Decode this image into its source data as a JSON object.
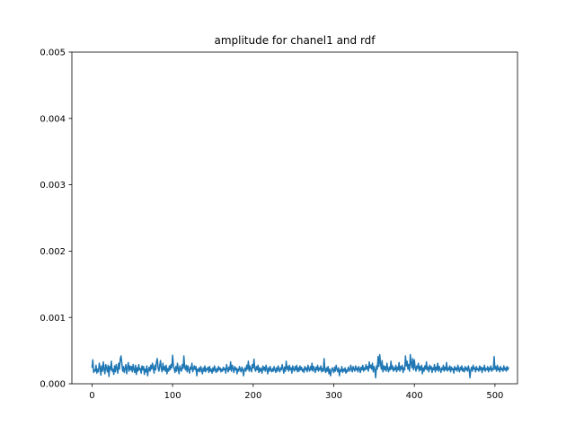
{
  "chart_data": {
    "type": "line",
    "title": "amplitude for chanel1 and rdf",
    "xlabel": "",
    "ylabel": "",
    "xlim": [
      -25,
      528
    ],
    "ylim": [
      0,
      0.005
    ],
    "x_ticks": [
      0,
      100,
      200,
      300,
      400,
      500
    ],
    "y_ticks": [
      0.0,
      0.001,
      0.002,
      0.003,
      0.004,
      0.005
    ],
    "x_tick_labels": [
      "0",
      "100",
      "200",
      "300",
      "400",
      "500"
    ],
    "y_tick_labels": [
      "0.000",
      "0.001",
      "0.002",
      "0.003",
      "0.004",
      "0.005"
    ],
    "grid": false,
    "legend": "none",
    "series": [
      {
        "color": "#1f77b4",
        "x_start": 0,
        "x_step": 1,
        "values": [
          0.00024,
          0.00036,
          0.00017,
          0.00021,
          0.00019,
          0.00028,
          0.00016,
          0.00022,
          0.00018,
          0.00031,
          0.00024,
          0.00013,
          0.00027,
          0.00019,
          0.00033,
          0.00022,
          0.00015,
          0.00029,
          0.00024,
          0.00018,
          0.00028,
          0.00011,
          0.00026,
          0.00021,
          0.00034,
          0.00019,
          0.00022,
          0.00014,
          0.00027,
          0.00018,
          0.00029,
          0.00023,
          0.00016,
          0.00031,
          0.00022,
          0.00037,
          0.00042,
          0.00031,
          0.00019,
          0.00026,
          0.00017,
          0.00023,
          0.00029,
          0.00015,
          0.00024,
          0.00032,
          0.00019,
          0.00027,
          0.00021,
          0.00026,
          0.00018,
          0.00029,
          0.00022,
          0.00017,
          0.00028,
          0.00014,
          0.00024,
          0.00019,
          0.00029,
          0.00021,
          0.00023,
          0.00016,
          0.00027,
          0.00021,
          0.00026,
          0.00014,
          0.00022,
          0.00018,
          0.00027,
          0.00012,
          0.00021,
          0.00025,
          0.00019,
          0.00028,
          0.00022,
          0.00031,
          0.00024,
          0.00016,
          0.00028,
          0.00021,
          0.00033,
          0.00038,
          0.00024,
          0.00019,
          0.00027,
          0.00035,
          0.00022,
          0.00018,
          0.00031,
          0.00021,
          0.00026,
          0.00019,
          0.00028,
          0.00015,
          0.00023,
          0.00019,
          0.00027,
          0.00021,
          0.00029,
          0.00024,
          0.00043,
          0.00028,
          0.00022,
          0.00017,
          0.00026,
          0.00019,
          0.00031,
          0.00022,
          0.00015,
          0.00027,
          0.00022,
          0.00019,
          0.00029,
          0.00023,
          0.00042,
          0.00025,
          0.00021,
          0.00028,
          0.00018,
          0.00027,
          0.00021,
          0.00016,
          0.00025,
          0.00022,
          0.00031,
          0.00018,
          0.00023,
          0.00027,
          0.00021,
          0.00026,
          0.00012,
          0.00022,
          0.00019,
          0.00024,
          0.00018,
          0.00026,
          0.00021,
          0.00015,
          0.00024,
          0.00019,
          0.00027,
          0.00018,
          0.00023,
          0.00021,
          0.00025,
          0.00017,
          0.00026,
          0.00019,
          0.00022,
          0.00016,
          0.00024,
          0.00019,
          0.00027,
          0.00021,
          0.00017,
          0.00023,
          0.00019,
          0.00026,
          0.00021,
          0.00024,
          0.00018,
          0.00022,
          0.00019,
          0.00025,
          0.00021,
          0.00023,
          0.00016,
          0.00029,
          0.00023,
          0.00018,
          0.00025,
          0.00021,
          0.00033,
          0.00019,
          0.00028,
          0.00023,
          0.00017,
          0.00026,
          0.00021,
          0.00024,
          0.00015,
          0.00022,
          0.00019,
          0.00026,
          0.00021,
          0.00018,
          0.00025,
          0.00022,
          0.00012,
          0.00021,
          0.00024,
          0.00019,
          0.00028,
          0.00022,
          0.00034,
          0.00019,
          0.00027,
          0.00022,
          0.00018,
          0.00029,
          0.00024,
          0.00037,
          0.00022,
          0.00019,
          0.00026,
          0.00021,
          0.00028,
          0.00017,
          0.00024,
          0.00019,
          0.00023,
          0.00016,
          0.00027,
          0.00021,
          0.00025,
          0.00019,
          0.00028,
          0.00022,
          0.00015,
          0.00024,
          0.00019,
          0.00026,
          0.00021,
          0.00018,
          0.00023,
          0.00019,
          0.00026,
          0.00021,
          0.00017,
          0.00024,
          0.00019,
          0.00027,
          0.00022,
          0.00018,
          0.00024,
          0.00021,
          0.00029,
          0.00023,
          0.00016,
          0.00025,
          0.00019,
          0.00034,
          0.00022,
          0.00026,
          0.00019,
          0.00028,
          0.00021,
          0.00024,
          0.00016,
          0.00027,
          0.00022,
          0.00019,
          0.00026,
          0.00021,
          0.00028,
          0.00018,
          0.00024,
          0.00019,
          0.00027,
          0.00021,
          0.00025,
          0.00019,
          0.00022,
          0.00017,
          0.00026,
          0.00021,
          0.00024,
          0.00018,
          0.00028,
          0.00022,
          0.00019,
          0.00026,
          0.00021,
          0.00031,
          0.00019,
          0.00026,
          0.00022,
          0.00017,
          0.00025,
          0.00021,
          0.00028,
          0.00019,
          0.00024,
          0.00021,
          0.00027,
          0.00018,
          0.00023,
          0.00019,
          0.00038,
          0.00021,
          0.00017,
          0.00024,
          0.00019,
          0.00026,
          0.00015,
          0.00022,
          0.00012,
          0.00019,
          0.00024,
          0.00021,
          0.00017,
          0.00025,
          0.00019,
          0.00028,
          0.00022,
          0.00018,
          0.00024,
          0.00012,
          0.00021,
          0.00019,
          0.00026,
          0.00017,
          0.00022,
          0.00019,
          0.00024,
          0.00016,
          0.00021,
          0.00018,
          0.00025,
          0.00021,
          0.00019,
          0.00028,
          0.00023,
          0.00018,
          0.00026,
          0.00022,
          0.00019,
          0.00027,
          0.00021,
          0.00024,
          0.00018,
          0.00026,
          0.00022,
          0.00017,
          0.00025,
          0.00021,
          0.00028,
          0.00019,
          0.00024,
          0.00021,
          0.00029,
          0.00022,
          0.00026,
          0.00019,
          0.00033,
          0.00024,
          0.00028,
          0.00022,
          0.00031,
          0.00018,
          0.00026,
          0.00021,
          9e-05,
          0.00027,
          0.00022,
          0.00041,
          0.00026,
          0.00044,
          0.00031,
          0.00022,
          0.00035,
          0.00018,
          0.00027,
          0.00021,
          0.00026,
          0.00019,
          0.00031,
          0.00023,
          0.00018,
          0.00025,
          0.00021,
          0.00034,
          0.00022,
          0.00027,
          0.00019,
          0.00024,
          0.00021,
          0.00028,
          0.00018,
          0.00025,
          0.00021,
          0.00032,
          0.00019,
          0.00026,
          0.00022,
          0.00028,
          0.00017,
          0.00024,
          0.00021,
          0.00042,
          0.00027,
          0.00034,
          0.00022,
          0.00029,
          0.00019,
          0.00044,
          0.00031,
          0.00024,
          0.00038,
          0.00021,
          0.00036,
          0.00025,
          0.00019,
          0.00027,
          0.00023,
          0.00031,
          0.00019,
          0.00026,
          0.00021,
          0.00028,
          0.00015,
          0.00024,
          0.00019,
          0.00027,
          0.00022,
          0.00033,
          0.00021,
          0.00025,
          0.00018,
          0.00028,
          0.00022,
          0.00026,
          0.00017,
          0.00024,
          0.00021,
          0.00029,
          0.00018,
          0.00025,
          0.00021,
          0.00031,
          0.00019,
          0.00026,
          0.00022,
          0.00017,
          0.00024,
          0.00021,
          0.00028,
          0.00019,
          0.00025,
          0.00021,
          0.00032,
          0.00019,
          0.00024,
          0.00021,
          0.00027,
          0.00018,
          0.00025,
          0.00021,
          0.00023,
          0.00016,
          0.00026,
          0.00021,
          0.00024,
          0.00019,
          0.00028,
          0.00022,
          0.00018,
          0.00025,
          0.00021,
          0.00027,
          0.00019,
          0.00023,
          0.00018,
          0.00026,
          0.00021,
          0.00024,
          0.00019,
          0.00027,
          0.00022,
          9e-05,
          0.00021,
          0.00025,
          0.00019,
          0.00028,
          0.00022,
          0.00024,
          0.00018,
          0.00026,
          0.00021,
          0.00023,
          0.00019,
          0.00027,
          0.00021,
          0.00025,
          0.00017,
          0.00024,
          0.00021,
          0.00028,
          0.00019,
          0.00023,
          0.00021,
          0.00026,
          0.00018,
          0.00024,
          0.00021,
          0.00027,
          0.00019,
          0.00023,
          0.00021,
          0.00041,
          0.00022,
          0.00026,
          0.00019,
          0.00028,
          0.00021,
          0.00024,
          0.00018,
          0.00026,
          0.00021,
          0.00023,
          0.00019,
          0.00027,
          0.00021,
          0.00024,
          0.00019,
          0.00026,
          0.00021,
          0.00025
        ]
      }
    ]
  }
}
